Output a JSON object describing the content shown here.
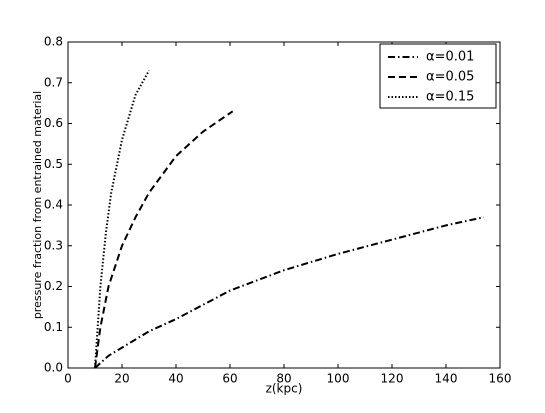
{
  "chart_data": {
    "type": "line",
    "xlabel": "z(kpc)",
    "ylabel": "pressure fraction from entrained material",
    "xlim": [
      0,
      160
    ],
    "ylim": [
      0,
      0.8
    ],
    "xticks": [
      0,
      20,
      40,
      60,
      80,
      100,
      120,
      140,
      160
    ],
    "yticks": [
      {
        "value": 0,
        "label": "0.0"
      },
      0.1,
      0.2,
      0.3,
      0.4,
      0.5,
      0.6,
      0.7,
      0.8
    ],
    "legend": "upper right",
    "series": [
      {
        "name": "α=0.01",
        "color": "#000000",
        "linestyle": "dashdot",
        "x": [
          10,
          15,
          20,
          30,
          40,
          60,
          80,
          100,
          120,
          140,
          154
        ],
        "values": [
          0,
          0.03,
          0.05,
          0.09,
          0.12,
          0.19,
          0.24,
          0.28,
          0.315,
          0.35,
          0.37
        ]
      },
      {
        "name": "α=0.05",
        "color": "#000000",
        "linestyle": "dashed",
        "x": [
          10,
          12,
          15,
          20,
          25,
          30,
          40,
          50,
          61
        ],
        "values": [
          0,
          0.1,
          0.2,
          0.3,
          0.37,
          0.43,
          0.52,
          0.58,
          0.63
        ]
      },
      {
        "name": "α=0.15",
        "color": "#000000",
        "linestyle": "dotted",
        "x": [
          10,
          12,
          14,
          16,
          20,
          25,
          30
        ],
        "values": [
          0,
          0.2,
          0.33,
          0.43,
          0.56,
          0.67,
          0.73
        ]
      }
    ]
  }
}
